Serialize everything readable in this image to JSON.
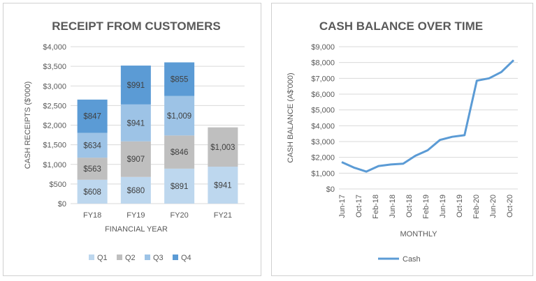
{
  "chart_data": [
    {
      "type": "bar",
      "stacked": true,
      "title": "RECEIPT FROM CUSTOMERS",
      "xlabel": "FINANCIAL YEAR",
      "ylabel": "CASH RECEIPTS ($'000)",
      "ylim": [
        0,
        4000
      ],
      "yticks": [
        "$0",
        "$500",
        "$1,000",
        "$1,500",
        "$2,000",
        "$2,500",
        "$3,000",
        "$3,500",
        "$4,000"
      ],
      "categories": [
        "FY18",
        "FY19",
        "FY20",
        "FY21"
      ],
      "series": [
        {
          "name": "Q1",
          "color": "#bdd7ee",
          "values": [
            608,
            680,
            891,
            941
          ],
          "labels": [
            "$608",
            "$680",
            "$891",
            "$941"
          ]
        },
        {
          "name": "Q2",
          "color": "#bfbfbf",
          "values": [
            563,
            907,
            846,
            1003
          ],
          "labels": [
            "$563",
            "$907",
            "$846",
            "$1,003"
          ]
        },
        {
          "name": "Q3",
          "color": "#9dc3e6",
          "values": [
            634,
            941,
            1009,
            null
          ],
          "labels": [
            "$634",
            "$941",
            "$1,009",
            ""
          ]
        },
        {
          "name": "Q4",
          "color": "#5b9bd5",
          "values": [
            847,
            991,
            855,
            null
          ],
          "labels": [
            "$847",
            "$991",
            "$855",
            ""
          ]
        }
      ],
      "grid": true,
      "legend": "bottom"
    },
    {
      "type": "line",
      "title": "CASH BALANCE OVER TIME",
      "xlabel": "MONTHLY",
      "ylabel": "CASH BALANCE (A$'000)",
      "ylim": [
        0,
        9000
      ],
      "yticks": [
        "$0",
        "$1,000",
        "$2,000",
        "$3,000",
        "$4,000",
        "$5,000",
        "$6,000",
        "$7,000",
        "$8,000",
        "$9,000"
      ],
      "xticks": [
        "Jun-17",
        "Oct-17",
        "Feb-18",
        "Jun-18",
        "Oct-18",
        "Feb-19",
        "Jun-19",
        "Oct-19",
        "Feb-20",
        "Jun-20",
        "Oct-20"
      ],
      "x": [
        "Jun-17",
        "Aug-17",
        "Oct-17",
        "Dec-17",
        "Feb-18",
        "Apr-18",
        "Jun-18",
        "Aug-18",
        "Oct-18",
        "Dec-18",
        "Feb-19",
        "Apr-19",
        "Jun-19",
        "Aug-19",
        "Oct-19",
        "Dec-19",
        "Feb-20",
        "Apr-20",
        "Jun-20",
        "Aug-20",
        "Oct-20",
        "Dec-20"
      ],
      "series": [
        {
          "name": "Cash",
          "color": "#5b9bd5",
          "values": [
            1700,
            1350,
            1100,
            1450,
            1550,
            1600,
            2100,
            2450,
            3100,
            3300,
            3400,
            6850,
            7000,
            7400,
            8150,
            null,
            null,
            null,
            null,
            null,
            null,
            null
          ]
        }
      ],
      "grid": true,
      "legend": "bottom"
    }
  ]
}
